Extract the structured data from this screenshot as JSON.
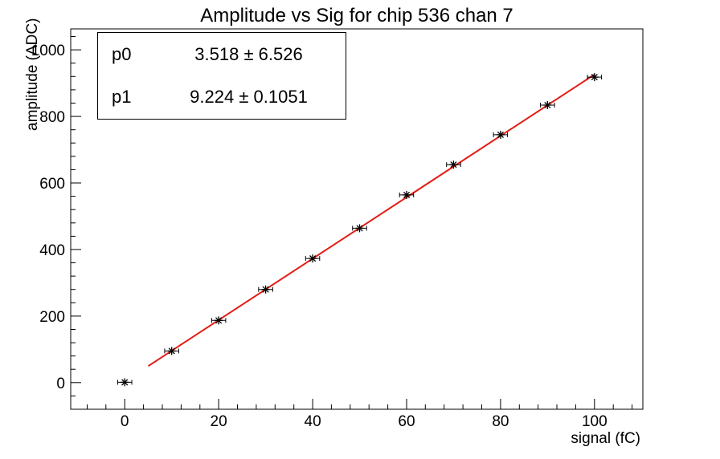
{
  "stats_box": {
    "rows": [
      {
        "name": "p0",
        "value": "3.518 ± 6.526"
      },
      {
        "name": "p1",
        "value": "9.224 ± 0.1051"
      }
    ]
  },
  "chart_data": {
    "type": "scatter",
    "title": "Amplitude vs Sig for chip 536 chan 7",
    "xlabel": "signal (fC)",
    "ylabel": "amplitude (ADC)",
    "xlim": [
      -11.5,
      110.3
    ],
    "ylim": [
      -80,
      1063
    ],
    "x_ticks": [
      0,
      20,
      40,
      60,
      80,
      100
    ],
    "y_ticks": [
      0,
      200,
      400,
      600,
      800,
      1000
    ],
    "x_minor_step": 4,
    "y_minor_step": 40,
    "points": [
      {
        "x": 0,
        "y": 1
      },
      {
        "x": 10,
        "y": 95
      },
      {
        "x": 20,
        "y": 187
      },
      {
        "x": 30,
        "y": 280
      },
      {
        "x": 40,
        "y": 373
      },
      {
        "x": 50,
        "y": 464
      },
      {
        "x": 60,
        "y": 564
      },
      {
        "x": 70,
        "y": 655
      },
      {
        "x": 80,
        "y": 745
      },
      {
        "x": 90,
        "y": 834
      },
      {
        "x": 100,
        "y": 918
      }
    ],
    "x_err": 1.5,
    "marker": "asterisk",
    "marker_color": "#000000",
    "frame_color": "#000000",
    "background_color": "#ffffff",
    "grid": false,
    "legend": "none",
    "fit": {
      "type": "linear",
      "p0": 3.518,
      "p0_err": 6.526,
      "p1": 9.224,
      "p1_err": 0.1051,
      "x_start": 5,
      "x_end": 100,
      "color": "#e31c14"
    }
  }
}
